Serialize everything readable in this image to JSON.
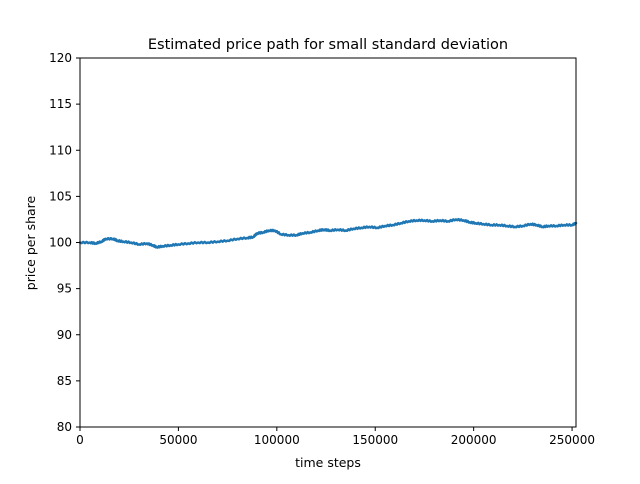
{
  "chart_data": {
    "type": "line",
    "title": "Estimated price path for small standard deviation",
    "xlabel": "time steps",
    "ylabel": "price per share",
    "xlim": [
      0,
      252000
    ],
    "ylim": [
      80,
      120
    ],
    "x_ticks": [
      0,
      50000,
      100000,
      150000,
      200000,
      250000
    ],
    "x_tick_labels": [
      "0",
      "50000",
      "100000",
      "150000",
      "200000",
      "250000"
    ],
    "y_ticks": [
      80,
      85,
      90,
      95,
      100,
      105,
      110,
      115,
      120
    ],
    "y_tick_labels": [
      "80",
      "85",
      "90",
      "95",
      "100",
      "105",
      "110",
      "115",
      "120"
    ],
    "grid": false,
    "line_color": "#1f77b4",
    "series": [
      {
        "x": [
          0,
          5000,
          8000,
          11000,
          13000,
          17000,
          19000,
          22000,
          26000,
          30000,
          34000,
          37000,
          39000,
          42000,
          46000,
          50000,
          55000,
          60000,
          65000,
          70000,
          75000,
          80000,
          85000,
          88000,
          90000,
          93000,
          96000,
          99000,
          102000,
          106000,
          110000,
          113000,
          117000,
          121000,
          124000,
          127000,
          131000,
          135000,
          139000,
          143000,
          147000,
          151000,
          155000,
          159000,
          163000,
          167000,
          171000,
          175000,
          179000,
          183000,
          187000,
          191000,
          195000,
          198000,
          201000,
          205000,
          209000,
          213000,
          217000,
          221000,
          225000,
          229000,
          232000,
          235000,
          238000,
          242000,
          246000,
          250000,
          252000
        ],
        "values": [
          100.0,
          100.0,
          99.9,
          100.1,
          100.4,
          100.4,
          100.2,
          100.1,
          100.0,
          99.8,
          99.9,
          99.7,
          99.5,
          99.6,
          99.7,
          99.8,
          99.9,
          100.0,
          100.0,
          100.1,
          100.2,
          100.4,
          100.5,
          100.6,
          101.0,
          101.1,
          101.3,
          101.3,
          100.9,
          100.8,
          100.8,
          101.0,
          101.1,
          101.3,
          101.4,
          101.3,
          101.4,
          101.3,
          101.5,
          101.6,
          101.7,
          101.6,
          101.8,
          101.9,
          102.1,
          102.3,
          102.4,
          102.4,
          102.3,
          102.4,
          102.3,
          102.5,
          102.4,
          102.2,
          102.1,
          102.0,
          101.9,
          101.9,
          101.8,
          101.7,
          101.8,
          102.0,
          101.9,
          101.7,
          101.8,
          101.8,
          101.9,
          101.9,
          102.1
        ]
      }
    ]
  }
}
